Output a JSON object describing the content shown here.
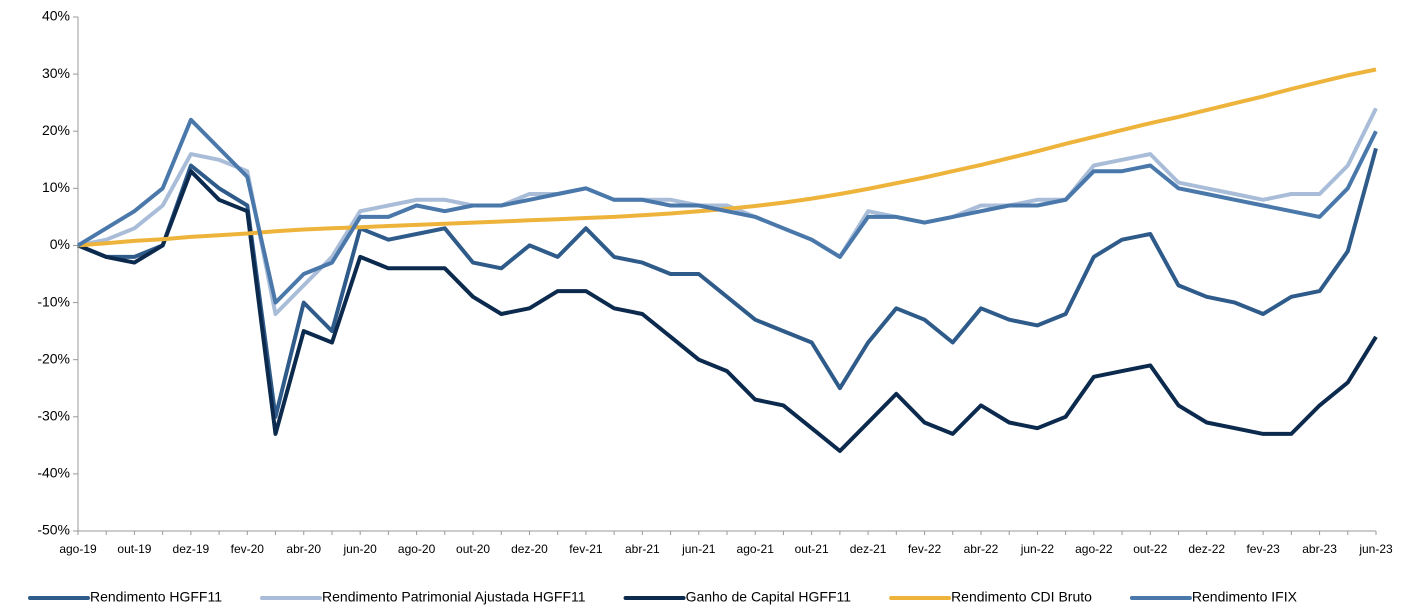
{
  "chart_data": {
    "type": "line",
    "categories": [
      "ago-19",
      null,
      "out-19",
      null,
      "dez-19",
      null,
      "fev-20",
      null,
      "abr-20",
      null,
      "jun-20",
      null,
      "ago-20",
      null,
      "out-20",
      null,
      "dez-20",
      null,
      "fev-21",
      null,
      "abr-21",
      null,
      "jun-21",
      null,
      "ago-21",
      null,
      "out-21",
      null,
      "dez-21",
      null,
      "fev-22",
      null,
      "abr-22",
      null,
      "jun-22",
      null,
      "ago-22",
      null,
      "out-22",
      null,
      "dez-22",
      null,
      "fev-23",
      null,
      "abr-23",
      null,
      "jun-23"
    ],
    "series": [
      {
        "name": "Rendimento HGFF11",
        "color": "#2f5b8a",
        "values": [
          0,
          -2,
          -2,
          0,
          14,
          10,
          7,
          -30,
          -10,
          -15,
          3,
          1,
          2,
          3,
          -3,
          -4,
          0,
          -2,
          3,
          -2,
          -3,
          -5,
          -5,
          -9,
          -13,
          -15,
          -17,
          -25,
          -17,
          -11,
          -13,
          -17,
          -11,
          -13,
          -14,
          -12,
          -2,
          1,
          2,
          -7,
          -9,
          -10,
          -12,
          -9,
          -8,
          -1,
          17
        ]
      },
      {
        "name": "Rendimento Patrimonial Ajustada HGFF11",
        "color": "#a9bdd9",
        "values": [
          0,
          1,
          3,
          7,
          16,
          15,
          13,
          -12,
          -7,
          -2,
          6,
          7,
          8,
          8,
          7,
          7,
          9,
          9,
          10,
          8,
          8,
          8,
          7,
          7,
          5,
          3,
          1,
          -2,
          6,
          5,
          4,
          5,
          7,
          7,
          8,
          8,
          14,
          15,
          16,
          11,
          10,
          9,
          8,
          9,
          9,
          14,
          24
        ]
      },
      {
        "name": "Ganho de Capital HGFF11",
        "color": "#0c2a4d",
        "values": [
          0,
          -2,
          -3,
          0,
          13,
          8,
          6,
          -33,
          -15,
          -17,
          -2,
          -4,
          -4,
          -4,
          -9,
          -12,
          -11,
          -8,
          -8,
          -11,
          -12,
          -16,
          -20,
          -22,
          -27,
          -28,
          -32,
          -36,
          -31,
          -26,
          -31,
          -33,
          -28,
          -31,
          -32,
          -30,
          -23,
          -22,
          -21,
          -28,
          -31,
          -32,
          -33,
          -33,
          -28,
          -24,
          -16
        ]
      },
      {
        "name": "Rendimento CDI Bruto",
        "color": "#eeb33b",
        "values": [
          0,
          0.4,
          0.8,
          1.1,
          1.5,
          1.8,
          2.1,
          2.5,
          2.8,
          3.0,
          3.2,
          3.4,
          3.6,
          3.8,
          4.0,
          4.2,
          4.4,
          4.6,
          4.8,
          5.0,
          5.3,
          5.6,
          6.0,
          6.4,
          6.9,
          7.5,
          8.2,
          9.0,
          9.9,
          10.9,
          11.9,
          13.0,
          14.1,
          15.3,
          16.5,
          17.8,
          19.0,
          20.2,
          21.4,
          22.5,
          23.7,
          24.9,
          26.1,
          27.4,
          28.6,
          29.8,
          30.8
        ]
      },
      {
        "name": "Rendimento IFIX",
        "color": "#4a78aa",
        "values": [
          0,
          3,
          6,
          10,
          22,
          17,
          12,
          -10,
          -5,
          -3,
          5,
          5,
          7,
          6,
          7,
          7,
          8,
          9,
          10,
          8,
          8,
          7,
          7,
          6,
          5,
          3,
          1,
          -2,
          5,
          5,
          4,
          5,
          6,
          7,
          7,
          8,
          13,
          13,
          14,
          10,
          9,
          8,
          7,
          6,
          5,
          10,
          20
        ]
      }
    ],
    "ylim": [
      -50,
      40
    ],
    "yticks": [
      {
        "value": -50,
        "label": "-50%"
      },
      {
        "value": -40,
        "label": "-40%"
      },
      {
        "value": -30,
        "label": "-30%"
      },
      {
        "value": -20,
        "label": "-20%"
      },
      {
        "value": -10,
        "label": "-10%"
      },
      {
        "value": 0,
        "label": "0%"
      },
      {
        "value": 10,
        "label": "10%"
      },
      {
        "value": 20,
        "label": "20%"
      },
      {
        "value": 30,
        "label": "30%"
      },
      {
        "value": 40,
        "label": "40%"
      }
    ],
    "legend": "bottom",
    "grid": false
  }
}
